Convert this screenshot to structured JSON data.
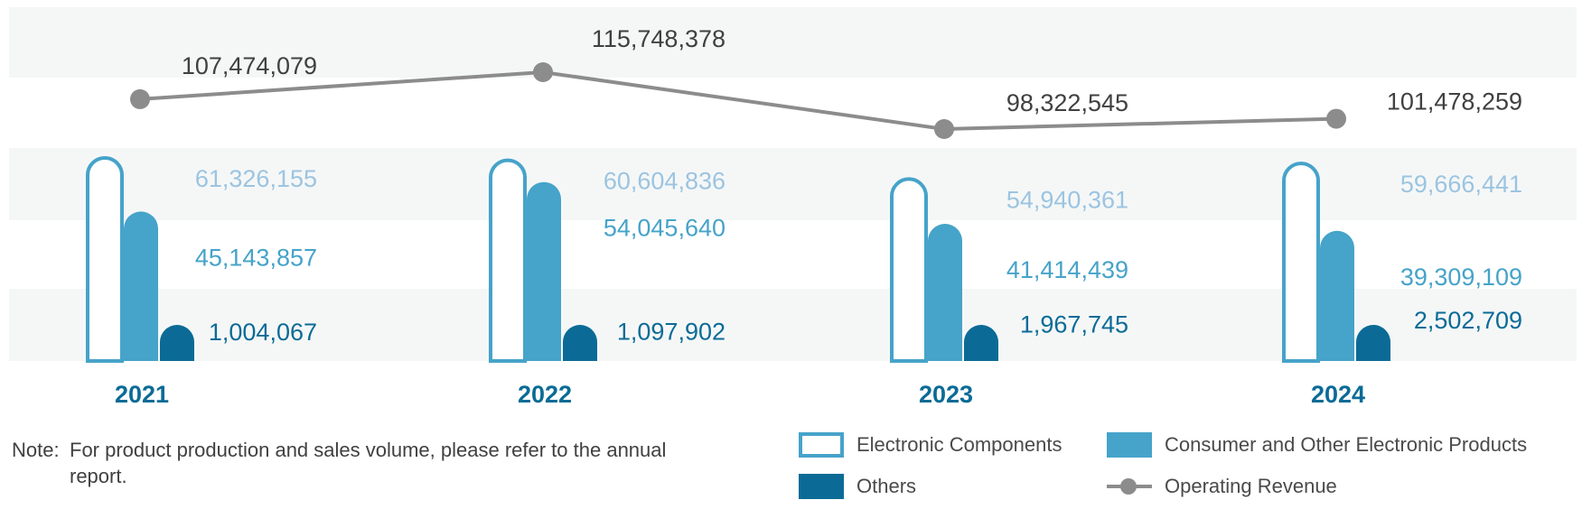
{
  "chart_data": {
    "type": "bar",
    "categories": [
      "2021",
      "2022",
      "2023",
      "2024"
    ],
    "series": [
      {
        "name": "Electronic Components",
        "values": [
          61326155,
          60604836,
          54940361,
          59666441
        ],
        "labels": [
          "61,326,155",
          "60,604,836",
          "54,940,361",
          "59,666,441"
        ]
      },
      {
        "name": "Consumer and Other Electronic Products",
        "values": [
          45143857,
          54045640,
          41414439,
          39309109
        ],
        "labels": [
          "45,143,857",
          "54,045,640",
          "41,414,439",
          "39,309,109"
        ]
      },
      {
        "name": "Others",
        "values": [
          1004067,
          1097902,
          1967745,
          2502709
        ],
        "labels": [
          "1,004,067",
          "1,097,902",
          "1,967,745",
          "2,502,709"
        ]
      },
      {
        "name": "Operating Revenue",
        "type": "line",
        "values": [
          107474079,
          115748378,
          98322545,
          101478259
        ],
        "labels": [
          "107,474,079",
          "115,748,378",
          "98,322,545",
          "101,478,259"
        ]
      }
    ],
    "title": "",
    "xlabel": "",
    "ylabel": "",
    "legend_position": "bottom-right",
    "colors": {
      "electronic_components": "#46a3c9",
      "consumer": "#46a3c9",
      "others": "#0b6b96",
      "revenue": "#8c8c8c",
      "label_light": "#9cc4e0",
      "label_mid": "#46a3c9",
      "label_dark": "#0b6b96",
      "label_revenue": "#404040",
      "year": "#0b6b96",
      "band": "#f5f7f7"
    }
  },
  "note": {
    "prefix": "Note:",
    "text": "For product production and sales volume, please refer to the annual report."
  }
}
